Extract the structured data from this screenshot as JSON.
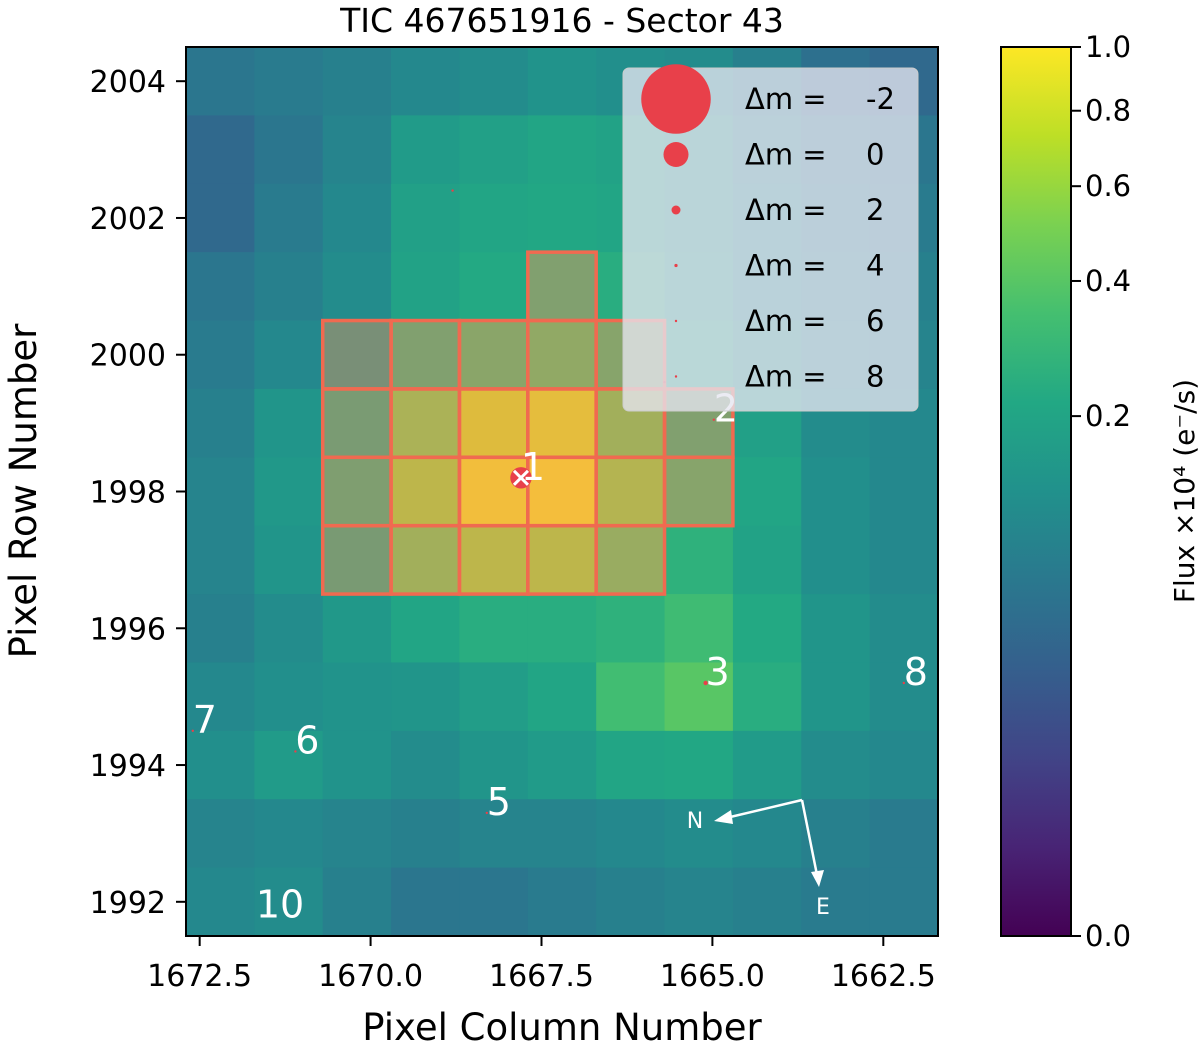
{
  "chart_data": {
    "type": "heatmap",
    "title": "TIC 467651916 - Sector 43",
    "xlabel": "Pixel Column Number",
    "ylabel": "Pixel Row Number",
    "xlim": [
      1672.7,
      1661.7
    ],
    "ylim": [
      1991.5,
      2004.5
    ],
    "x_ticks": [
      1672.5,
      1670.0,
      1667.5,
      1665.0,
      1662.5
    ],
    "x_tick_labels": [
      "1672.5",
      "1670.0",
      "1667.5",
      "1665.0",
      "1662.5"
    ],
    "y_ticks": [
      1992,
      1994,
      1996,
      1998,
      2000,
      2002,
      2004
    ],
    "y_tick_labels": [
      "1992",
      "1994",
      "1996",
      "1998",
      "2000",
      "2002",
      "2004"
    ],
    "grid_columns": [
      1672.2,
      1671.2,
      1670.2,
      1669.2,
      1668.2,
      1667.2,
      1666.2,
      1665.2,
      1664.2,
      1663.2,
      1662.2
    ],
    "grid_rows": [
      2004,
      2003,
      2002,
      2001,
      2000,
      1999,
      1998,
      1997,
      1996,
      1995,
      1994,
      1993,
      1992
    ],
    "flux": [
      [
        0.06,
        0.07,
        0.08,
        0.1,
        0.11,
        0.13,
        0.12,
        0.11,
        0.08,
        0.05,
        0.04
      ],
      [
        0.04,
        0.06,
        0.09,
        0.16,
        0.18,
        0.2,
        0.19,
        0.16,
        0.1,
        0.07,
        0.06
      ],
      [
        0.04,
        0.07,
        0.1,
        0.18,
        0.2,
        0.21,
        0.2,
        0.17,
        0.11,
        0.08,
        0.07
      ],
      [
        0.06,
        0.08,
        0.11,
        0.19,
        0.22,
        0.26,
        0.24,
        0.18,
        0.12,
        0.09,
        0.08
      ],
      [
        0.07,
        0.1,
        0.14,
        0.26,
        0.32,
        0.36,
        0.3,
        0.22,
        0.15,
        0.1,
        0.09
      ],
      [
        0.08,
        0.14,
        0.22,
        0.5,
        0.8,
        0.85,
        0.45,
        0.26,
        0.18,
        0.11,
        0.1
      ],
      [
        0.09,
        0.15,
        0.25,
        0.6,
        0.95,
        0.96,
        0.55,
        0.3,
        0.2,
        0.12,
        0.1
      ],
      [
        0.09,
        0.14,
        0.21,
        0.45,
        0.6,
        0.6,
        0.4,
        0.26,
        0.19,
        0.12,
        0.1
      ],
      [
        0.08,
        0.11,
        0.15,
        0.2,
        0.24,
        0.24,
        0.26,
        0.32,
        0.22,
        0.14,
        0.11
      ],
      [
        0.1,
        0.12,
        0.13,
        0.14,
        0.17,
        0.2,
        0.33,
        0.4,
        0.24,
        0.14,
        0.11
      ],
      [
        0.12,
        0.16,
        0.13,
        0.11,
        0.14,
        0.16,
        0.2,
        0.21,
        0.16,
        0.11,
        0.1
      ],
      [
        0.09,
        0.1,
        0.09,
        0.08,
        0.09,
        0.09,
        0.1,
        0.11,
        0.1,
        0.08,
        0.07
      ],
      [
        0.1,
        0.11,
        0.08,
        0.06,
        0.06,
        0.07,
        0.08,
        0.09,
        0.08,
        0.07,
        0.07
      ]
    ],
    "aperture_pixels": [
      [
        1667.2,
        2001
      ],
      [
        1670.2,
        2000
      ],
      [
        1669.2,
        2000
      ],
      [
        1668.2,
        2000
      ],
      [
        1667.2,
        2000
      ],
      [
        1666.2,
        2000
      ],
      [
        1670.2,
        1999
      ],
      [
        1669.2,
        1999
      ],
      [
        1668.2,
        1999
      ],
      [
        1667.2,
        1999
      ],
      [
        1666.2,
        1999
      ],
      [
        1665.2,
        1999
      ],
      [
        1670.2,
        1998
      ],
      [
        1669.2,
        1998
      ],
      [
        1668.2,
        1998
      ],
      [
        1667.2,
        1998
      ],
      [
        1666.2,
        1998
      ],
      [
        1665.2,
        1998
      ],
      [
        1670.2,
        1997
      ],
      [
        1669.2,
        1997
      ],
      [
        1668.2,
        1997
      ],
      [
        1667.2,
        1997
      ],
      [
        1666.2,
        1997
      ]
    ],
    "stars": [
      {
        "label": "1",
        "x": 1667.8,
        "y": 1998.2,
        "dm": 0.3,
        "target": true
      },
      {
        "label": "2",
        "x": 1664.98,
        "y": 1999.05,
        "dm": 7
      },
      {
        "label": "3",
        "x": 1665.1,
        "y": 1995.2,
        "dm": 3.4
      },
      {
        "label": "5",
        "x": 1668.3,
        "y": 1993.3,
        "dm": 8
      },
      {
        "label": "6",
        "x": 1671.1,
        "y": 1994.2,
        "dm": 6.5
      },
      {
        "label": "7",
        "x": 1672.6,
        "y": 1994.5,
        "dm": 7
      },
      {
        "label": "8",
        "x": 1662.2,
        "y": 1995.2,
        "dm": 6.5
      },
      {
        "label": "10",
        "x": 1671.5,
        "y": 1991.8,
        "dm": 8
      },
      {
        "label": "",
        "x": 1668.8,
        "y": 2002.4,
        "dm": 6.3
      },
      {
        "label": "",
        "x": 1665.7,
        "y": 1999.6,
        "dm": 8
      }
    ],
    "legend": {
      "placement": "top-right",
      "prefix": "Δm =",
      "entries": [
        {
          "dm": -2,
          "label": "-2"
        },
        {
          "dm": 0,
          "label": "0"
        },
        {
          "dm": 2,
          "label": "2"
        },
        {
          "dm": 4,
          "label": "4"
        },
        {
          "dm": 6,
          "label": "6"
        },
        {
          "dm": 8,
          "label": "8"
        }
      ]
    },
    "compass": {
      "north_label": "N",
      "east_label": "E"
    },
    "colorbar": {
      "label": "Flux ×10⁴ (e⁻/s)",
      "tick_values": [
        0.0,
        0.2,
        0.4,
        0.6,
        0.8,
        1.0
      ],
      "tick_labels": [
        "0.0",
        "0.2",
        "0.4",
        "0.6",
        "0.8",
        "1.0"
      ],
      "scale": "power-stretched",
      "colormap": "viridis"
    },
    "colors": {
      "marker": "#e8404a",
      "aperture": "#f06a50",
      "aperture_fill": "#f2895c",
      "legend_bg": "#e6e6f0",
      "text": "#000000"
    }
  }
}
